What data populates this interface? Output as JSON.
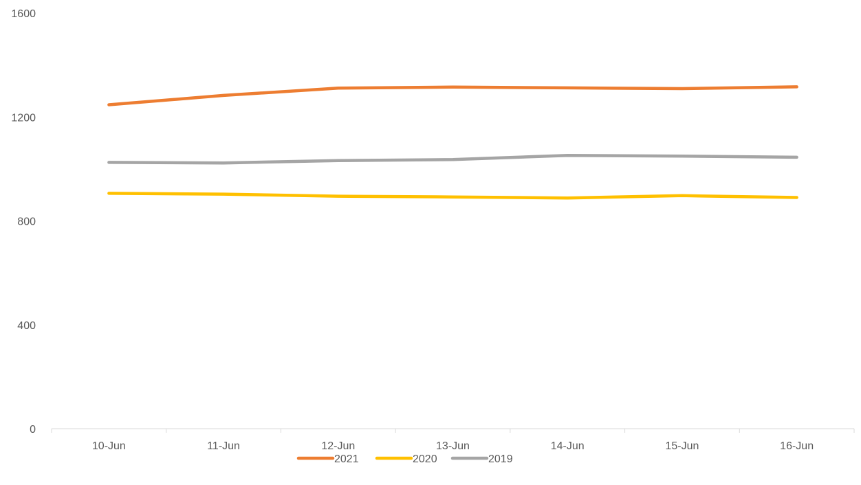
{
  "chart_data": {
    "type": "line",
    "title": "",
    "xlabel": "",
    "ylabel": "",
    "categories": [
      "10-Jun",
      "11-Jun",
      "12-Jun",
      "13-Jun",
      "14-Jun",
      "15-Jun",
      "16-Jun"
    ],
    "y_ticks": [
      "0",
      "400",
      "800",
      "1200",
      "1600"
    ],
    "ylim": [
      0,
      1600
    ],
    "grid": false,
    "legend_position": "bottom",
    "series": [
      {
        "name": "2021",
        "color": "#ED7D31",
        "values": [
          1247,
          1283,
          1311,
          1315,
          1312,
          1309,
          1316
        ]
      },
      {
        "name": "2020",
        "color": "#FFC000",
        "values": [
          906,
          903,
          895,
          892,
          888,
          897,
          890
        ]
      },
      {
        "name": "2019",
        "color": "#A5A5A5",
        "values": [
          1025,
          1023,
          1032,
          1036,
          1052,
          1049,
          1045
        ]
      }
    ]
  }
}
